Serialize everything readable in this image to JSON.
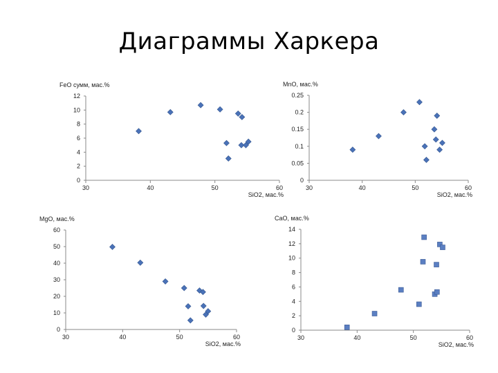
{
  "slide": {
    "title": "Диаграммы Харкера"
  },
  "colors": {
    "diamond": "#4a72b8",
    "square": "#5b7fc2",
    "axis": "#888888"
  },
  "chart_data": [
    {
      "type": "scatter",
      "marker": "diamond",
      "ylabel": "FeO сумм, мас.%",
      "xlabel": "SiO2, мас.%",
      "xlim": [
        30,
        60
      ],
      "xticks": [
        30,
        40,
        50,
        60
      ],
      "ylim": [
        0,
        12
      ],
      "yticks": [
        0,
        2,
        4,
        6,
        8,
        10,
        12
      ],
      "ytick_labels": [
        "0",
        "2",
        "4",
        "6",
        "8",
        "10",
        "12"
      ],
      "points": [
        [
          38.2,
          7.0
        ],
        [
          43.1,
          9.7
        ],
        [
          47.8,
          10.7
        ],
        [
          50.8,
          10.1
        ],
        [
          53.6,
          9.5
        ],
        [
          54.2,
          9.0
        ],
        [
          51.8,
          5.3
        ],
        [
          54.1,
          5.0
        ],
        [
          54.8,
          5.0
        ],
        [
          55.2,
          5.5
        ],
        [
          52.1,
          3.1
        ]
      ]
    },
    {
      "type": "scatter",
      "marker": "diamond",
      "ylabel": "MnO, мас.%",
      "xlabel": "SiO2, мас.%",
      "xlim": [
        30,
        60
      ],
      "xticks": [
        30,
        40,
        50,
        60
      ],
      "ylim": [
        0,
        0.25
      ],
      "yticks": [
        0,
        0.05,
        0.1,
        0.15,
        0.2,
        0.25
      ],
      "ytick_labels": [
        "0",
        "0.05",
        "0.1",
        "0.15",
        "0.2",
        "0.25"
      ],
      "points": [
        [
          38.2,
          0.09
        ],
        [
          43.1,
          0.13
        ],
        [
          47.8,
          0.2
        ],
        [
          50.8,
          0.23
        ],
        [
          53.6,
          0.15
        ],
        [
          54.1,
          0.19
        ],
        [
          53.9,
          0.12
        ],
        [
          51.8,
          0.1
        ],
        [
          54.6,
          0.09
        ],
        [
          55.1,
          0.11
        ],
        [
          52.1,
          0.06
        ]
      ]
    },
    {
      "type": "scatter",
      "marker": "diamond",
      "ylabel": "MgO, мас.%",
      "xlabel": "SiO2, мас.%",
      "xlim": [
        30,
        60
      ],
      "xticks": [
        30,
        40,
        50,
        60
      ],
      "ylim": [
        0,
        60
      ],
      "yticks": [
        0,
        10,
        20,
        30,
        40,
        50,
        60
      ],
      "ytick_labels": [
        "0",
        "10",
        "20",
        "30",
        "40",
        "50",
        "60"
      ],
      "points": [
        [
          38.2,
          49.8
        ],
        [
          43.1,
          40.3
        ],
        [
          47.5,
          29.0
        ],
        [
          50.8,
          25.0
        ],
        [
          53.5,
          23.5
        ],
        [
          54.1,
          22.6
        ],
        [
          51.5,
          14.0
        ],
        [
          54.2,
          14.2
        ],
        [
          55.0,
          11.0
        ],
        [
          54.6,
          9.0
        ],
        [
          51.9,
          5.5
        ]
      ]
    },
    {
      "type": "scatter",
      "marker": "square",
      "ylabel": "CaO, мас.%",
      "xlabel": "SiO2, мас.%",
      "xlim": [
        30,
        60
      ],
      "xticks": [
        30,
        40,
        50,
        60
      ],
      "ylim": [
        0,
        14
      ],
      "yticks": [
        0,
        2,
        4,
        6,
        8,
        10,
        12,
        14
      ],
      "ytick_labels": [
        "0",
        "2",
        "4",
        "6",
        "8",
        "10",
        "12",
        "14"
      ],
      "points": [
        [
          38.2,
          0.4
        ],
        [
          43.1,
          2.3
        ],
        [
          47.8,
          5.6
        ],
        [
          51.0,
          3.6
        ],
        [
          51.9,
          12.9
        ],
        [
          51.7,
          9.5
        ],
        [
          54.7,
          11.9
        ],
        [
          55.2,
          11.5
        ],
        [
          54.1,
          9.1
        ],
        [
          53.8,
          5.0
        ],
        [
          54.2,
          5.3
        ]
      ]
    }
  ]
}
